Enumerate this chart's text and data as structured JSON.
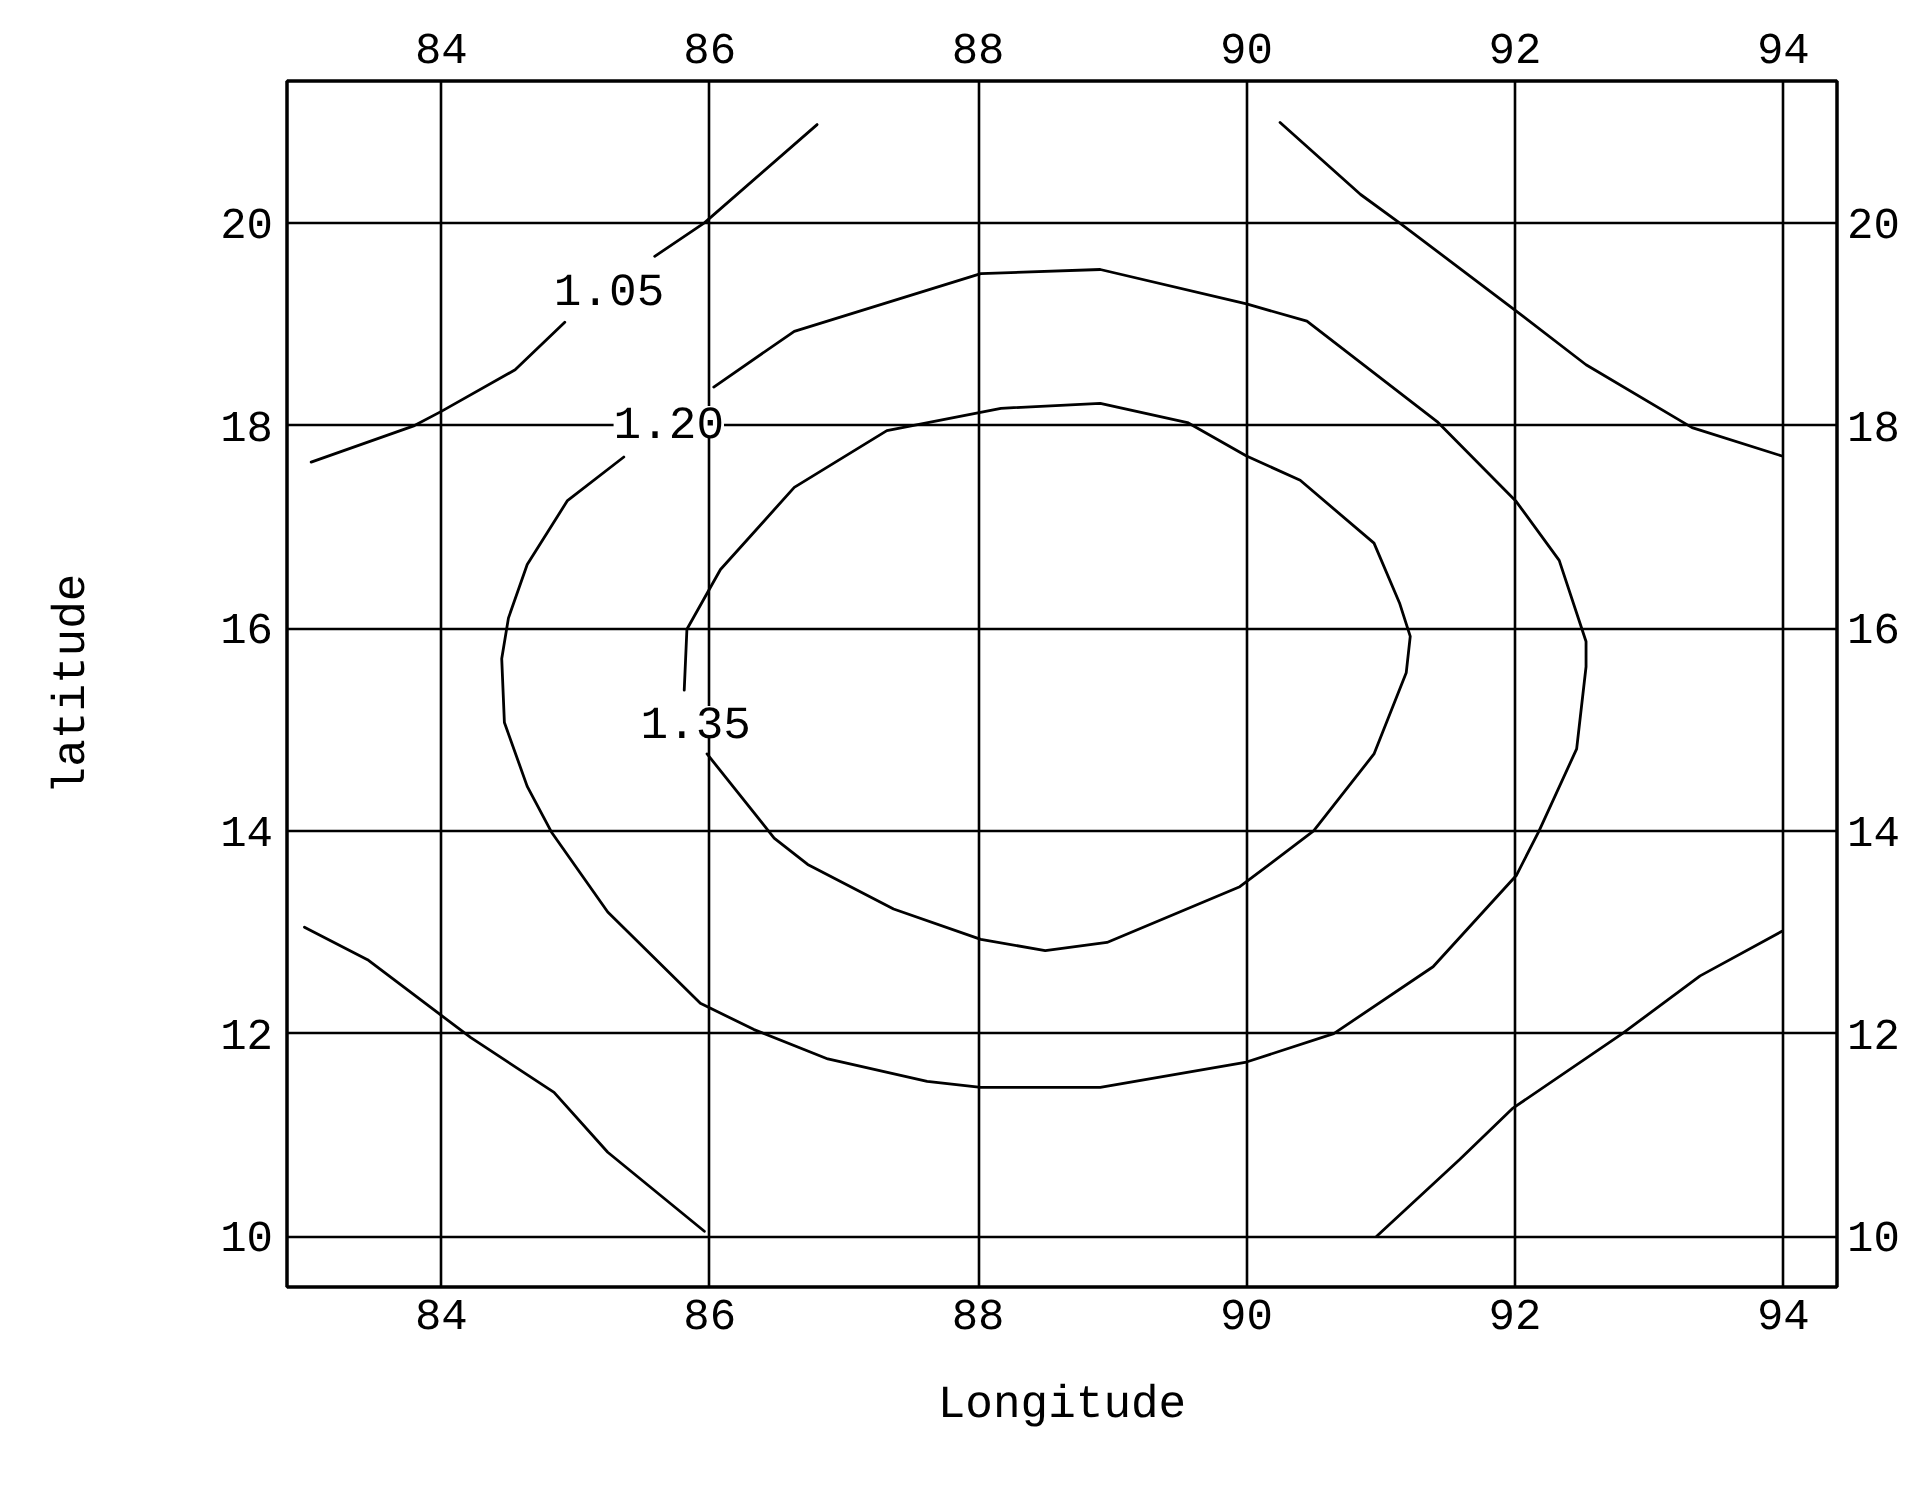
{
  "chart_data": {
    "type": "line",
    "xlabel": "Longitude",
    "ylabel": "latitude",
    "xlim": [
      82.85,
      94.4
    ],
    "ylim": [
      9.5,
      21.4
    ],
    "xticks": [
      84,
      86,
      88,
      90,
      92,
      94
    ],
    "yticks": [
      10,
      12,
      14,
      16,
      18,
      20
    ],
    "x2lim": [
      82.85,
      94.4
    ],
    "x2ticks": [
      84,
      86,
      88,
      90,
      92,
      94
    ],
    "y2lim": [
      9.5,
      21.4
    ],
    "y2ticks": [
      10,
      12,
      14,
      16,
      18,
      20
    ],
    "grid": true,
    "series": [
      {
        "name": "1.05",
        "color": "#000000",
        "x": [
          83.03,
          83.8,
          84.0,
          84.55,
          84.92,
          85.25,
          85.59,
          85.96,
          86.8
        ],
        "values": [
          17.64,
          18.0,
          18.14,
          18.55,
          19.02,
          null,
          19.67,
          20.0,
          20.97
        ]
      },
      {
        "name": "1.20",
        "color": "#000000",
        "x": [
          86.03,
          86.63,
          88.02,
          88.91,
          90.0,
          90.45,
          91.42,
          92.01,
          92.33,
          92.53,
          92.53,
          92.46,
          92.18,
          92.01,
          91.39,
          90.65,
          90.0,
          88.91,
          88.02,
          87.62,
          86.88,
          86.33,
          85.93,
          85.24,
          84.82,
          84.64,
          84.47,
          84.45,
          84.5,
          84.64,
          84.94,
          85.36
        ],
        "values": [
          18.38,
          18.93,
          19.5,
          19.54,
          19.2,
          19.03,
          18.04,
          17.25,
          16.67,
          15.87,
          15.62,
          14.81,
          14.0,
          13.56,
          12.66,
          12.0,
          11.72,
          11.47,
          11.47,
          11.53,
          11.75,
          12.04,
          12.3,
          13.2,
          13.99,
          14.44,
          15.07,
          15.7,
          16.1,
          16.63,
          17.26,
          17.69
        ]
      },
      {
        "name": "1.35",
        "color": "#000000",
        "x": [
          85.98,
          86.48,
          86.73,
          87.37,
          88.02,
          88.5,
          88.96,
          89.95,
          90.5,
          90.95,
          91.19,
          91.22,
          91.14,
          90.95,
          90.4,
          90.0,
          89.56,
          88.91,
          88.17,
          87.32,
          86.63,
          86.08,
          85.83,
          85.81
        ],
        "values": [
          14.76,
          13.93,
          13.67,
          13.23,
          12.93,
          12.82,
          12.9,
          13.45,
          14.0,
          14.76,
          15.56,
          15.92,
          16.25,
          16.84,
          17.46,
          17.7,
          18.03,
          18.22,
          18.17,
          17.95,
          17.39,
          16.58,
          15.99,
          15.39
        ]
      },
      {
        "color": "#000000",
        "x": [
          90.25,
          90.85,
          91.14,
          92.01,
          92.53,
          93.32,
          93.99
        ],
        "values": [
          20.99,
          20.28,
          20.0,
          19.13,
          18.6,
          17.98,
          17.7
        ]
      },
      {
        "color": "#000000",
        "x": [
          82.98,
          83.45,
          84.0,
          84.22,
          84.84,
          85.24,
          85.96
        ],
        "values": [
          13.05,
          12.73,
          12.18,
          11.96,
          11.42,
          10.83,
          10.05
        ]
      },
      {
        "color": "#000000",
        "x": [
          90.97,
          91.59,
          91.98,
          92.8,
          93.38,
          93.99
        ],
        "values": [
          10.0,
          10.76,
          11.26,
          12.0,
          12.57,
          13.01
        ]
      }
    ]
  }
}
